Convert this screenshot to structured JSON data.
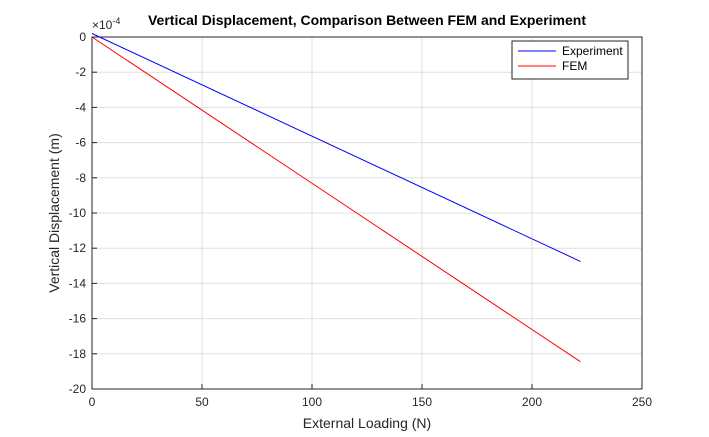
{
  "chart_data": {
    "type": "line",
    "title": "Vertical Displacement, Comparison Between FEM and Experiment",
    "xlabel": "External Loading (N)",
    "ylabel": "Vertical Displacement (m)",
    "y_exponent_label": "×10",
    "y_exponent_power": "-4",
    "xlim": [
      0,
      250
    ],
    "ylim": [
      -20,
      0
    ],
    "x_ticks": [
      0,
      50,
      100,
      150,
      200,
      250
    ],
    "y_ticks": [
      0,
      -2,
      -4,
      -6,
      -8,
      -10,
      -12,
      -14,
      -16,
      -18,
      -20
    ],
    "grid": true,
    "legend_position": "top-right",
    "series": [
      {
        "name": "Experiment",
        "color": "#0000ff",
        "x": [
          0,
          222
        ],
        "y": [
          0.2,
          -12.75
        ]
      },
      {
        "name": "FEM",
        "color": "#ff0000",
        "x": [
          0,
          222
        ],
        "y": [
          0,
          -18.45
        ]
      }
    ]
  }
}
